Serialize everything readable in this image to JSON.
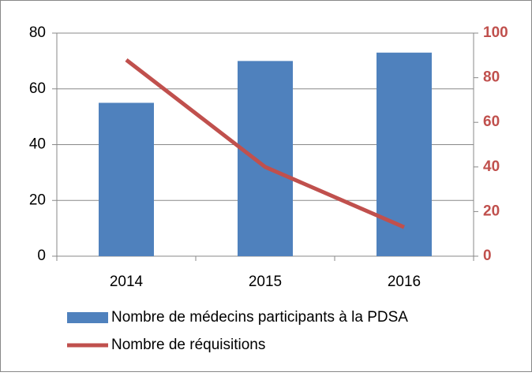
{
  "chart_data": {
    "type": "bar_line",
    "categories": [
      "2014",
      "2015",
      "2016"
    ],
    "series": [
      {
        "name": "Nombre de médecins participants à la PDSA",
        "color": "#4f81bd",
        "type": "bar",
        "values": [
          55,
          70,
          73
        ]
      },
      {
        "name": "Nombre de réquisitions",
        "color": "#c0504d",
        "type": "line",
        "axis": "y2",
        "values": [
          88,
          40,
          13
        ]
      }
    ],
    "ylim": [
      0,
      80
    ],
    "yticks": [
      0,
      20,
      40,
      60,
      80
    ],
    "y2lim": [
      0,
      100
    ],
    "y2ticks": [
      0,
      20,
      40,
      60,
      80,
      100
    ],
    "grid": true,
    "legend": "bottom"
  }
}
